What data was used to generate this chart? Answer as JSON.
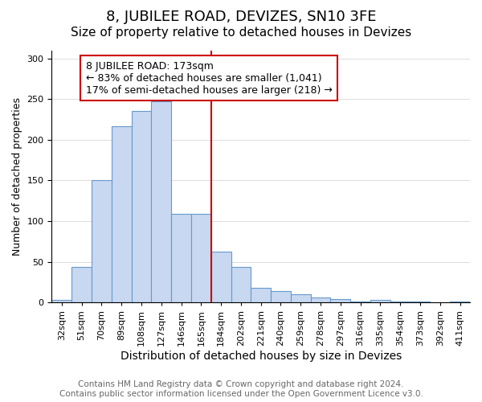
{
  "title": "8, JUBILEE ROAD, DEVIZES, SN10 3FE",
  "subtitle": "Size of property relative to detached houses in Devizes",
  "xlabel": "Distribution of detached houses by size in Devizes",
  "ylabel": "Number of detached properties",
  "bar_values": [
    3,
    44,
    150,
    217,
    235,
    247,
    109,
    109,
    63,
    44,
    18,
    14,
    10,
    6,
    4,
    1,
    3,
    1,
    1,
    0,
    1
  ],
  "bar_labels": [
    "32sqm",
    "51sqm",
    "70sqm",
    "89sqm",
    "108sqm",
    "127sqm",
    "146sqm",
    "165sqm",
    "184sqm",
    "202sqm",
    "221sqm",
    "240sqm",
    "259sqm",
    "278sqm",
    "297sqm",
    "316sqm",
    "335sqm",
    "354sqm",
    "373sqm",
    "392sqm",
    "411sqm"
  ],
  "bar_color": "#c8d8f0",
  "bar_edge_color": "#6699cc",
  "vline_x": 7.5,
  "vline_color": "#cc0000",
  "annotation_title": "8 JUBILEE ROAD: 173sqm",
  "annotation_line1": "← 83% of detached houses are smaller (1,041)",
  "annotation_line2": "17% of semi-detached houses are larger (218) →",
  "annotation_box_color": "#ffffff",
  "annotation_box_edge": "#cc0000",
  "ylim": [
    0,
    310
  ],
  "yticks": [
    0,
    50,
    100,
    150,
    200,
    250,
    300
  ],
  "footer_line1": "Contains HM Land Registry data © Crown copyright and database right 2024.",
  "footer_line2": "Contains public sector information licensed under the Open Government Licence v3.0.",
  "title_fontsize": 13,
  "subtitle_fontsize": 11,
  "xlabel_fontsize": 10,
  "ylabel_fontsize": 9,
  "tick_fontsize": 8,
  "footer_fontsize": 7.5,
  "annotation_fontsize": 9
}
